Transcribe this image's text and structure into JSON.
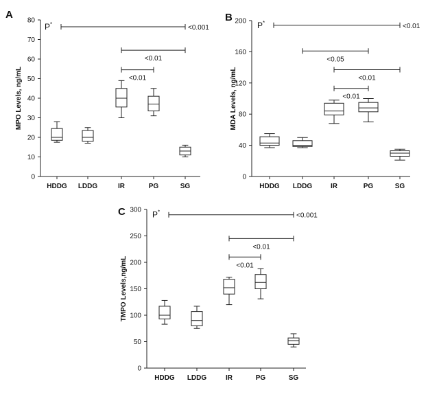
{
  "chart_data": [
    {
      "type": "box",
      "panel_label": "A",
      "ylabel": "MPO Levels, ng/mL",
      "ylim": [
        0,
        80
      ],
      "yticks": [
        "0",
        "10",
        "20",
        "30",
        "40",
        "50",
        "60",
        "70",
        "80"
      ],
      "categories": [
        "HDDG",
        "LDDG",
        "IR",
        "PG",
        "SG"
      ],
      "boxes": [
        {
          "category": "HDDG",
          "min": 17.5,
          "q1": 18.5,
          "median": 20,
          "q3": 24.5,
          "max": 28
        },
        {
          "category": "LDDG",
          "min": 17,
          "q1": 18,
          "median": 20,
          "q3": 23.5,
          "max": 25
        },
        {
          "category": "IR",
          "min": 30,
          "q1": 35.5,
          "median": 40,
          "q3": 45,
          "max": 49
        },
        {
          "category": "PG",
          "min": 31,
          "q1": 33.5,
          "median": 37,
          "q3": 41,
          "max": 45
        },
        {
          "category": "SG",
          "min": 10,
          "q1": 11,
          "median": 13,
          "q3": 15,
          "max": 16
        }
      ],
      "comparisons": [
        {
          "from": "HDDG",
          "to": "SG",
          "label": "<0.001",
          "y": 76.5,
          "kind": "overall",
          "overall_label": "P",
          "overall_sup": "*"
        },
        {
          "from": "IR",
          "to": "SG",
          "label": "<0.01",
          "y": 64.5
        },
        {
          "from": "IR",
          "to": "PG",
          "label": "<0.01",
          "y": 54.5
        }
      ]
    },
    {
      "type": "box",
      "panel_label": "B",
      "ylabel": "MDA Levels, ng/mL",
      "ylim": [
        0,
        200
      ],
      "yticks": [
        "0",
        "40",
        "80",
        "120",
        "160",
        "200"
      ],
      "categories": [
        "HDDG",
        "LDDG",
        "IR",
        "PG",
        "SG"
      ],
      "boxes": [
        {
          "category": "HDDG",
          "min": 37,
          "q1": 40,
          "median": 43,
          "q3": 51,
          "max": 55
        },
        {
          "category": "LDDG",
          "min": 37,
          "q1": 38.5,
          "median": 40,
          "q3": 46,
          "max": 50
        },
        {
          "category": "IR",
          "min": 68,
          "q1": 79,
          "median": 84,
          "q3": 94,
          "max": 98
        },
        {
          "category": "PG",
          "min": 70,
          "q1": 83,
          "median": 88,
          "q3": 95,
          "max": 100
        },
        {
          "category": "SG",
          "min": 21,
          "q1": 26,
          "median": 30,
          "q3": 33,
          "max": 35
        }
      ],
      "comparisons": [
        {
          "from": "HDDG",
          "to": "SG",
          "label": "<0.01",
          "y": 194,
          "kind": "overall",
          "overall_label": "P",
          "overall_sup": "*"
        },
        {
          "from": "LDDG",
          "to": "PG",
          "label": "<0.05",
          "y": 161
        },
        {
          "from": "IR",
          "to": "SG",
          "label": "<0.01",
          "y": 137
        },
        {
          "from": "IR",
          "to": "PG",
          "label": "<0.01",
          "y": 113
        }
      ]
    },
    {
      "type": "box",
      "panel_label": "C",
      "ylabel": "TMPO Levels,ng/mL",
      "ylim": [
        0,
        300
      ],
      "yticks": [
        "0",
        "50",
        "100",
        "150",
        "200",
        "250",
        "300"
      ],
      "categories": [
        "HDDG",
        "LDDG",
        "IR",
        "PG",
        "SG"
      ],
      "boxes": [
        {
          "category": "HDDG",
          "min": 83,
          "q1": 93,
          "median": 100,
          "q3": 117,
          "max": 128
        },
        {
          "category": "LDDG",
          "min": 75,
          "q1": 80,
          "median": 90,
          "q3": 107,
          "max": 117
        },
        {
          "category": "IR",
          "min": 120,
          "q1": 140,
          "median": 152,
          "q3": 168,
          "max": 172
        },
        {
          "category": "PG",
          "min": 131,
          "q1": 150,
          "median": 162,
          "q3": 177,
          "max": 188
        },
        {
          "category": "SG",
          "min": 40,
          "q1": 45,
          "median": 52,
          "q3": 57,
          "max": 65
        }
      ],
      "comparisons": [
        {
          "from": "HDDG",
          "to": "SG",
          "label": "<0.001",
          "y": 290,
          "kind": "overall",
          "overall_label": "P",
          "overall_sup": "*"
        },
        {
          "from": "IR",
          "to": "SG",
          "label": "<0.01",
          "y": 245
        },
        {
          "from": "IR",
          "to": "PG",
          "label": "<0.01",
          "y": 210
        }
      ]
    }
  ]
}
